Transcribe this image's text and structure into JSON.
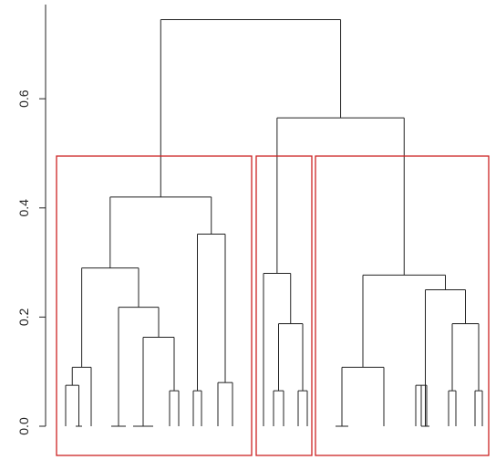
{
  "chart_data": {
    "type": "dendrogram",
    "title": "",
    "xlabel": "",
    "ylabel": "",
    "ylim": [
      0,
      0.75
    ],
    "yticks": [
      {
        "value": 0.0,
        "label": "0.0"
      },
      {
        "value": 0.2,
        "label": "0.2"
      },
      {
        "value": 0.4,
        "label": "0.4"
      },
      {
        "value": 0.6,
        "label": "0.6"
      }
    ],
    "n_leaves": 31,
    "merges": [
      {
        "left": 0,
        "right": 1,
        "height": 0.001
      },
      {
        "left": 2,
        "right": 3,
        "height": 0.0
      },
      {
        "left": 4,
        "right": 5,
        "height": 0.0
      },
      {
        "left": 6,
        "right": 7,
        "height": 0.065
      },
      {
        "left": 8,
        "right": 9,
        "height": 0.065
      },
      {
        "left": 10,
        "right": 11,
        "height": 0.0
      },
      {
        "left": 12,
        "right": 13,
        "height": 0.065
      },
      {
        "left": 14,
        "right": 15,
        "height": 0.065
      },
      {
        "left": 16,
        "right": 17,
        "height": 0.0
      },
      {
        "left": 18,
        "right": 19,
        "height": 0.0
      },
      {
        "left": 20,
        "right": 21,
        "height": 0.075
      },
      {
        "left": 22,
        "right": 23,
        "height": 0.065
      },
      {
        "left": 24,
        "right": 25,
        "height": 0.065
      },
      {
        "left": 0,
        "right": 1,
        "height": 0.075,
        "from_clusters": true
      },
      {
        "left": 2,
        "right": 3,
        "height": 0.163,
        "from_clusters": true
      }
    ],
    "clusters_boxed": 3,
    "box_color": "#cc2222",
    "line_color": "#222222"
  }
}
